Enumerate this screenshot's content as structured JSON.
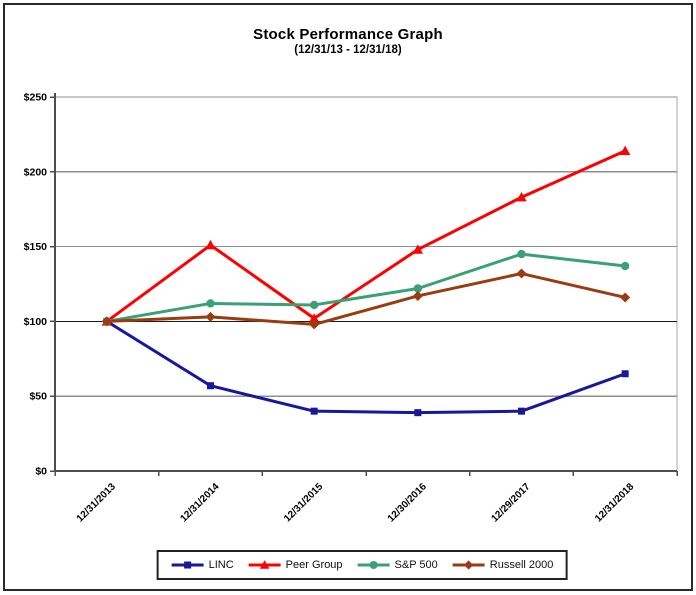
{
  "window": {
    "title": "Stock Performance Graph",
    "subtitle": "(12/31/13 - 12/31/18)"
  },
  "chart_data": {
    "type": "line",
    "title": "Stock Performance Graph",
    "subtitle": "(12/31/13 - 12/31/18)",
    "categories": [
      "12/31/2013",
      "12/31/2014",
      "12/31/2015",
      "12/30/2016",
      "12/29/2017",
      "12/31/2018"
    ],
    "series": [
      {
        "name": "LINC",
        "color": "#181899",
        "marker": "square",
        "values": [
          100,
          57,
          40,
          39,
          40,
          65
        ]
      },
      {
        "name": "Peer Group",
        "color": "#FF0000",
        "marker": "triangle",
        "values": [
          100,
          151,
          102,
          148,
          183,
          214
        ]
      },
      {
        "name": "S&P 500",
        "color": "#3AA076",
        "marker": "circle",
        "values": [
          100,
          112,
          111,
          122,
          145,
          137
        ]
      },
      {
        "name": "Russell 2000",
        "color": "#993C0F",
        "marker": "diamond",
        "values": [
          100,
          103,
          98,
          117,
          132,
          116
        ]
      }
    ],
    "ylim": [
      0,
      250
    ],
    "y_tick_values": [
      0,
      50,
      100,
      150,
      200,
      250
    ],
    "y_ticks": [
      "$0",
      "$50",
      "$100",
      "$150",
      "$200",
      "$250"
    ],
    "grid": true,
    "legend_position": "bottom",
    "colors": {
      "gridline": "#8F8F8F",
      "baseline_100": "#1a1a1a",
      "axis": "#4d4d4d",
      "plot_border": "#a9a9a9",
      "outer_border": "#2a2a2a",
      "text": "#000000",
      "background": "#ffffff"
    }
  }
}
